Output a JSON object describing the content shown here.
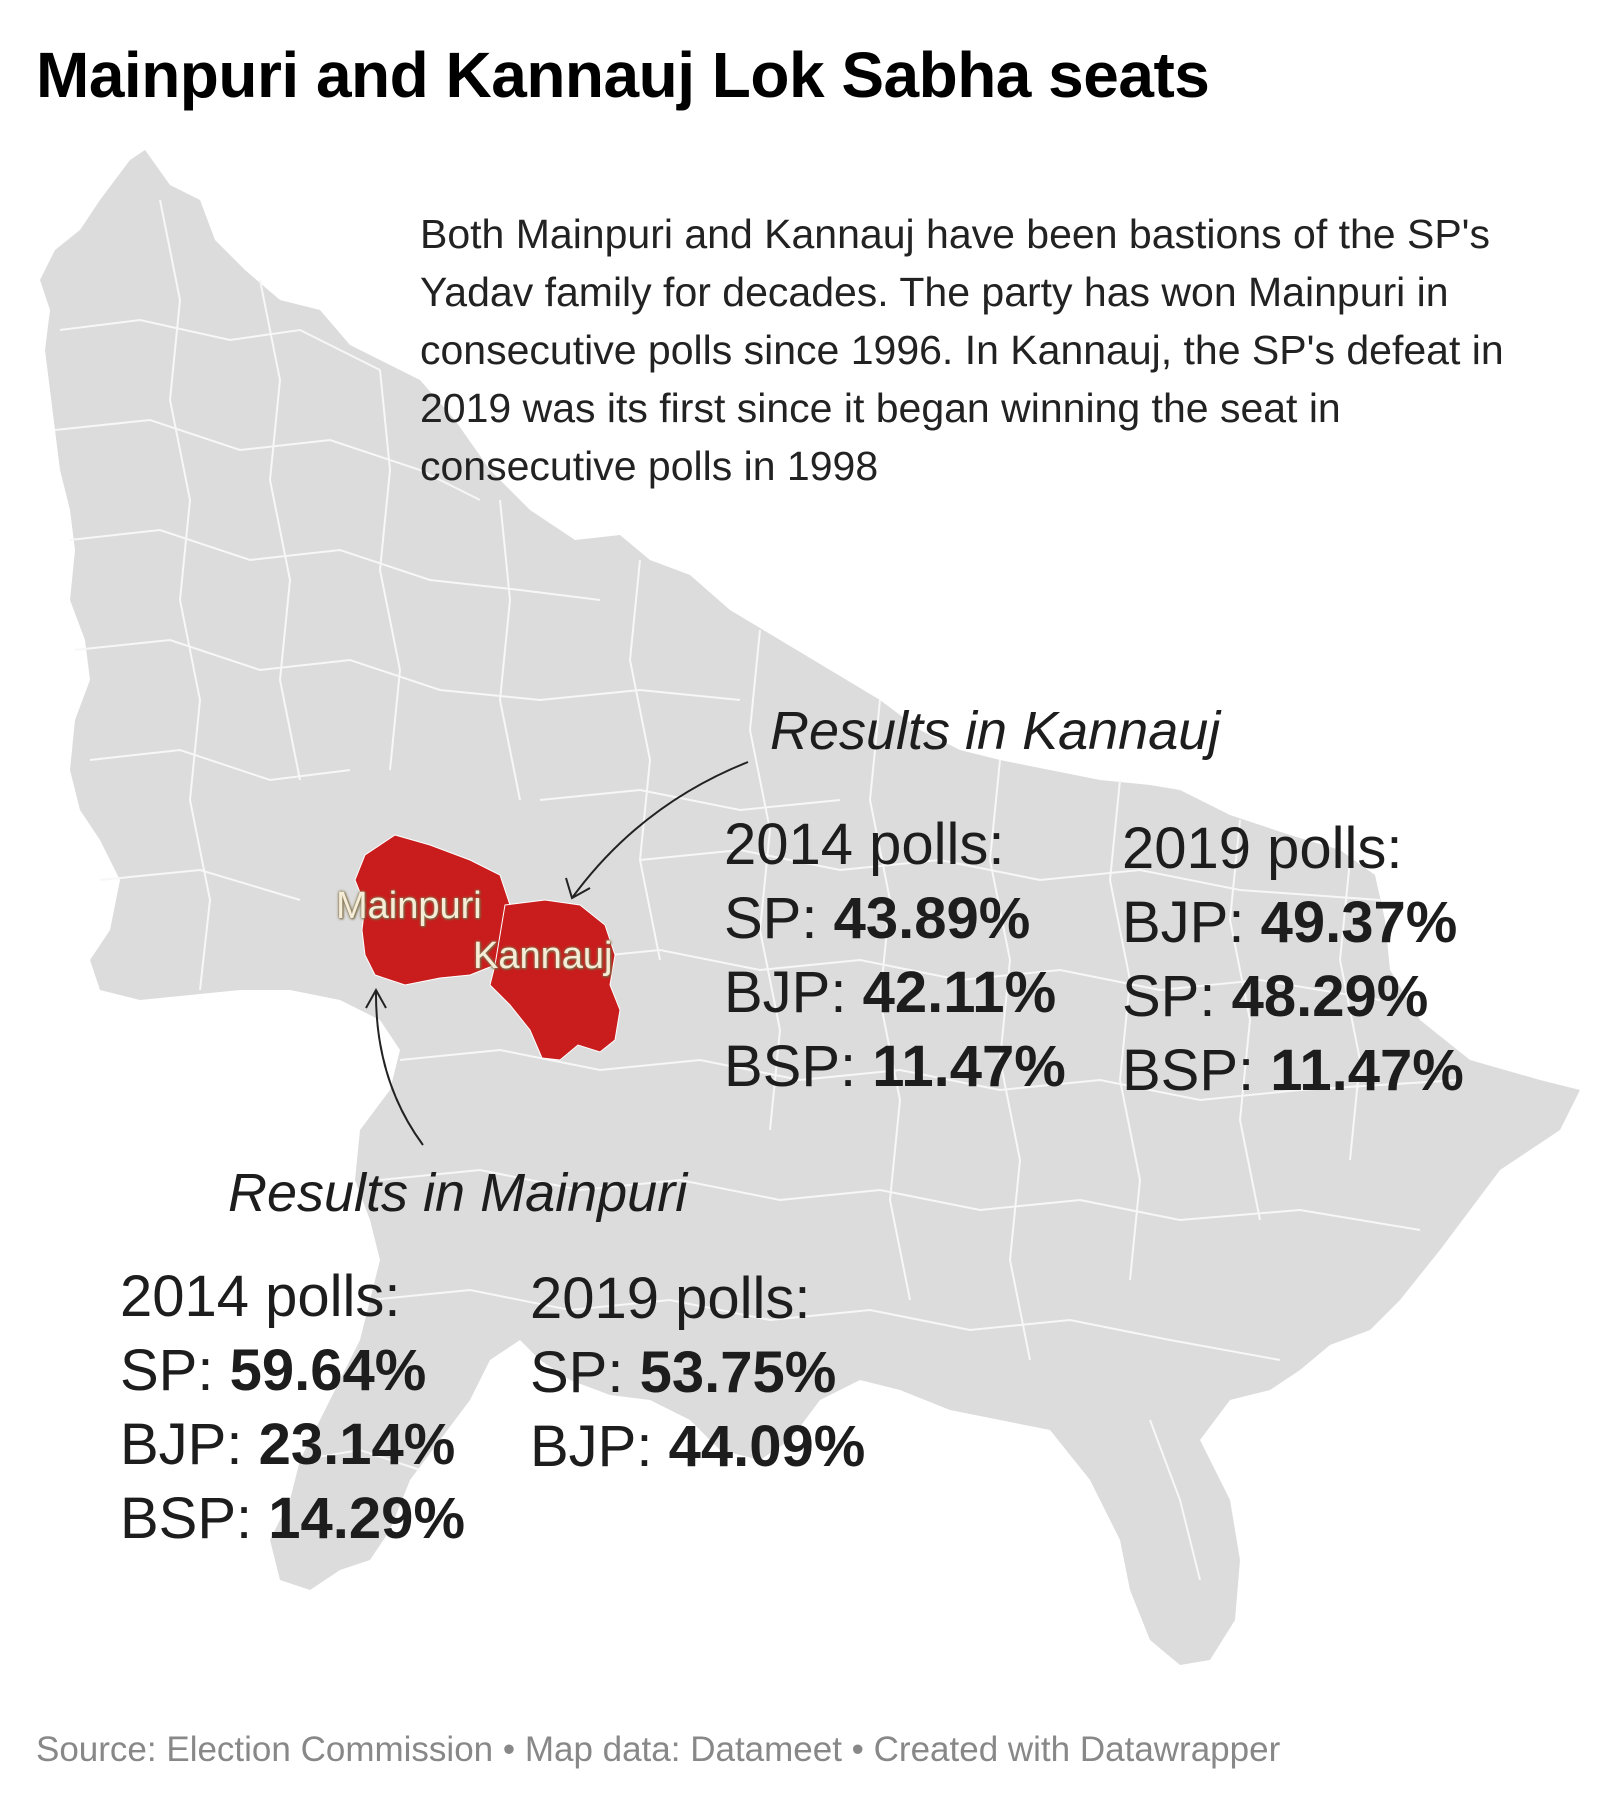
{
  "title": "Mainpuri and Kannauj Lok Sabha seats",
  "note": "Both Mainpuri and Kannauj have been bastions of the SP's Yadav family for decades. The party has won Mainpuri in consecutive polls since 1996. In Kannauj, the SP's defeat in 2019 was its first since it began winning the seat in consecutive polls in 1998",
  "colors": {
    "state_fill": "#dcdcdc",
    "district_border": "#f7f7f7",
    "highlight": "#c91d1d"
  },
  "map_labels": {
    "mainpuri": "Mainpuri",
    "kannauj": "Kannauj"
  },
  "kannauj": {
    "heading": "Results in Kannauj",
    "polls_2014": {
      "label": "2014 polls:",
      "rows": [
        {
          "party": "SP:",
          "value": "43.89%"
        },
        {
          "party": "BJP:",
          "value": "42.11%"
        },
        {
          "party": "BSP:",
          "value": "11.47%"
        }
      ]
    },
    "polls_2019": {
      "label": "2019 polls:",
      "rows": [
        {
          "party": "BJP:",
          "value": "49.37%"
        },
        {
          "party": "SP:",
          "value": "48.29%"
        },
        {
          "party": "BSP:",
          "value": "11.47%"
        }
      ]
    }
  },
  "mainpuri": {
    "heading": "Results in Mainpuri",
    "polls_2014": {
      "label": "2014 polls:",
      "rows": [
        {
          "party": "SP:",
          "value": "59.64%"
        },
        {
          "party": "BJP:",
          "value": "23.14%"
        },
        {
          "party": "BSP:",
          "value": "14.29%"
        }
      ]
    },
    "polls_2019": {
      "label": "2019 polls:",
      "rows": [
        {
          "party": "SP:",
          "value": "53.75%"
        },
        {
          "party": "BJP:",
          "value": "44.09%"
        }
      ]
    }
  },
  "footer": "Source: Election Commission • Map data: Datameet • Created with Datawrapper"
}
